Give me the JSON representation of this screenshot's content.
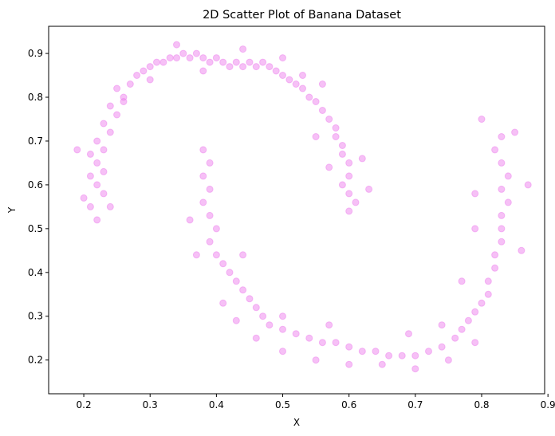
{
  "chart_data": {
    "type": "scatter",
    "title": "2D Scatter Plot of Banana Dataset",
    "xlabel": "X",
    "ylabel": "Y",
    "xlim": [
      0.147,
      0.895
    ],
    "ylim": [
      0.123,
      0.962
    ],
    "xticks": [
      "0.2",
      "0.3",
      "0.4",
      "0.5",
      "0.6",
      "0.7",
      "0.8",
      "0.9"
    ],
    "yticks": [
      "0.2",
      "0.3",
      "0.4",
      "0.5",
      "0.6",
      "0.7",
      "0.8",
      "0.9"
    ],
    "grid": false,
    "marker_color": "#ee82ee",
    "marker_opacity": 0.5,
    "series": [
      {
        "points": [
          [
            0.22,
            0.52
          ],
          [
            0.21,
            0.55
          ],
          [
            0.23,
            0.58
          ],
          [
            0.22,
            0.6
          ],
          [
            0.21,
            0.62
          ],
          [
            0.23,
            0.63
          ],
          [
            0.22,
            0.65
          ],
          [
            0.21,
            0.67
          ],
          [
            0.23,
            0.68
          ],
          [
            0.22,
            0.7
          ],
          [
            0.24,
            0.72
          ],
          [
            0.23,
            0.74
          ],
          [
            0.25,
            0.76
          ],
          [
            0.24,
            0.78
          ],
          [
            0.26,
            0.8
          ],
          [
            0.25,
            0.82
          ],
          [
            0.27,
            0.83
          ],
          [
            0.28,
            0.85
          ],
          [
            0.29,
            0.86
          ],
          [
            0.3,
            0.87
          ],
          [
            0.31,
            0.88
          ],
          [
            0.32,
            0.88
          ],
          [
            0.33,
            0.89
          ],
          [
            0.34,
            0.89
          ],
          [
            0.35,
            0.9
          ],
          [
            0.36,
            0.89
          ],
          [
            0.37,
            0.9
          ],
          [
            0.38,
            0.89
          ],
          [
            0.39,
            0.88
          ],
          [
            0.4,
            0.89
          ],
          [
            0.41,
            0.88
          ],
          [
            0.42,
            0.87
          ],
          [
            0.43,
            0.88
          ],
          [
            0.44,
            0.87
          ],
          [
            0.45,
            0.88
          ],
          [
            0.46,
            0.87
          ],
          [
            0.47,
            0.88
          ],
          [
            0.48,
            0.87
          ],
          [
            0.49,
            0.86
          ],
          [
            0.5,
            0.85
          ],
          [
            0.51,
            0.84
          ],
          [
            0.52,
            0.83
          ],
          [
            0.53,
            0.82
          ],
          [
            0.54,
            0.8
          ],
          [
            0.55,
            0.79
          ],
          [
            0.56,
            0.77
          ],
          [
            0.57,
            0.75
          ],
          [
            0.58,
            0.73
          ],
          [
            0.58,
            0.71
          ],
          [
            0.59,
            0.69
          ],
          [
            0.59,
            0.67
          ],
          [
            0.6,
            0.65
          ],
          [
            0.6,
            0.62
          ],
          [
            0.59,
            0.6
          ],
          [
            0.6,
            0.58
          ],
          [
            0.61,
            0.56
          ],
          [
            0.6,
            0.54
          ],
          [
            0.19,
            0.68
          ],
          [
            0.2,
            0.57
          ],
          [
            0.24,
            0.55
          ],
          [
            0.26,
            0.79
          ],
          [
            0.3,
            0.84
          ],
          [
            0.34,
            0.92
          ],
          [
            0.38,
            0.86
          ],
          [
            0.44,
            0.91
          ],
          [
            0.5,
            0.89
          ],
          [
            0.53,
            0.85
          ],
          [
            0.56,
            0.83
          ],
          [
            0.62,
            0.66
          ],
          [
            0.63,
            0.59
          ],
          [
            0.57,
            0.64
          ],
          [
            0.55,
            0.71
          ],
          [
            0.38,
            0.68
          ],
          [
            0.39,
            0.65
          ],
          [
            0.38,
            0.62
          ],
          [
            0.39,
            0.59
          ],
          [
            0.38,
            0.56
          ],
          [
            0.39,
            0.53
          ],
          [
            0.4,
            0.5
          ],
          [
            0.39,
            0.47
          ],
          [
            0.4,
            0.44
          ],
          [
            0.41,
            0.42
          ],
          [
            0.42,
            0.4
          ],
          [
            0.43,
            0.38
          ],
          [
            0.44,
            0.36
          ],
          [
            0.45,
            0.34
          ],
          [
            0.46,
            0.32
          ],
          [
            0.47,
            0.3
          ],
          [
            0.48,
            0.28
          ],
          [
            0.5,
            0.27
          ],
          [
            0.52,
            0.26
          ],
          [
            0.54,
            0.25
          ],
          [
            0.56,
            0.24
          ],
          [
            0.58,
            0.24
          ],
          [
            0.6,
            0.23
          ],
          [
            0.62,
            0.22
          ],
          [
            0.64,
            0.22
          ],
          [
            0.66,
            0.21
          ],
          [
            0.68,
            0.21
          ],
          [
            0.7,
            0.21
          ],
          [
            0.72,
            0.22
          ],
          [
            0.74,
            0.23
          ],
          [
            0.76,
            0.25
          ],
          [
            0.77,
            0.27
          ],
          [
            0.78,
            0.29
          ],
          [
            0.79,
            0.31
          ],
          [
            0.8,
            0.33
          ],
          [
            0.81,
            0.35
          ],
          [
            0.81,
            0.38
          ],
          [
            0.82,
            0.41
          ],
          [
            0.82,
            0.44
          ],
          [
            0.83,
            0.47
          ],
          [
            0.83,
            0.5
          ],
          [
            0.83,
            0.53
          ],
          [
            0.84,
            0.56
          ],
          [
            0.83,
            0.59
          ],
          [
            0.84,
            0.62
          ],
          [
            0.83,
            0.65
          ],
          [
            0.82,
            0.68
          ],
          [
            0.83,
            0.71
          ],
          [
            0.36,
            0.52
          ],
          [
            0.37,
            0.44
          ],
          [
            0.41,
            0.33
          ],
          [
            0.43,
            0.29
          ],
          [
            0.46,
            0.25
          ],
          [
            0.5,
            0.22
          ],
          [
            0.55,
            0.2
          ],
          [
            0.6,
            0.19
          ],
          [
            0.65,
            0.19
          ],
          [
            0.7,
            0.18
          ],
          [
            0.75,
            0.2
          ],
          [
            0.79,
            0.24
          ],
          [
            0.86,
            0.45
          ],
          [
            0.87,
            0.6
          ],
          [
            0.79,
            0.58
          ],
          [
            0.8,
            0.75
          ],
          [
            0.85,
            0.72
          ],
          [
            0.44,
            0.44
          ],
          [
            0.5,
            0.3
          ],
          [
            0.57,
            0.28
          ],
          [
            0.69,
            0.26
          ],
          [
            0.74,
            0.28
          ],
          [
            0.77,
            0.38
          ],
          [
            0.79,
            0.5
          ]
        ]
      }
    ]
  }
}
